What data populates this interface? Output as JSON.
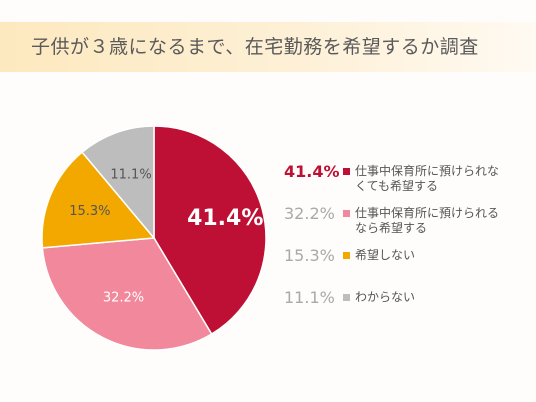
{
  "title": "子供が３歳になるまで、在宅勤務を希望するか調査",
  "chart_data": {
    "type": "pie",
    "title": "子供が３歳になるまで、在宅勤務を希望するか調査",
    "start": "12 o'clock",
    "direction": "clockwise",
    "legend_position": "right",
    "slices": [
      {
        "label": "仕事中保育所に預けられなくても希望する",
        "value": 41.4,
        "value_label": "41.4%",
        "color": "#be0f34",
        "label_color": "#ffffff"
      },
      {
        "label": "仕事中保育所に預けられるなら希望する",
        "value": 32.2,
        "value_label": "32.2%",
        "color": "#f1889c",
        "label_color": "#ffffff"
      },
      {
        "label": "希望しない",
        "value": 15.3,
        "value_label": "15.3%",
        "color": "#f3a800",
        "label_color": "#555555"
      },
      {
        "label": "わからない",
        "value": 11.1,
        "value_label": "11.1%",
        "color": "#bdbdbd",
        "label_color": "#555555"
      }
    ]
  },
  "legend": [
    {
      "pct": "41.4%",
      "line1": "仕事中保育所に預けられな",
      "line2": "くても希望する",
      "color": "#be0f34"
    },
    {
      "pct": "32.2%",
      "line1": "仕事中保育所に預けられる",
      "line2": "なら希望する",
      "color": "#f1889c"
    },
    {
      "pct": "15.3%",
      "line1": "希望しない",
      "line2": "",
      "color": "#f3a800"
    },
    {
      "pct": "11.1%",
      "line1": "わからない",
      "line2": "",
      "color": "#bdbdbd"
    }
  ]
}
